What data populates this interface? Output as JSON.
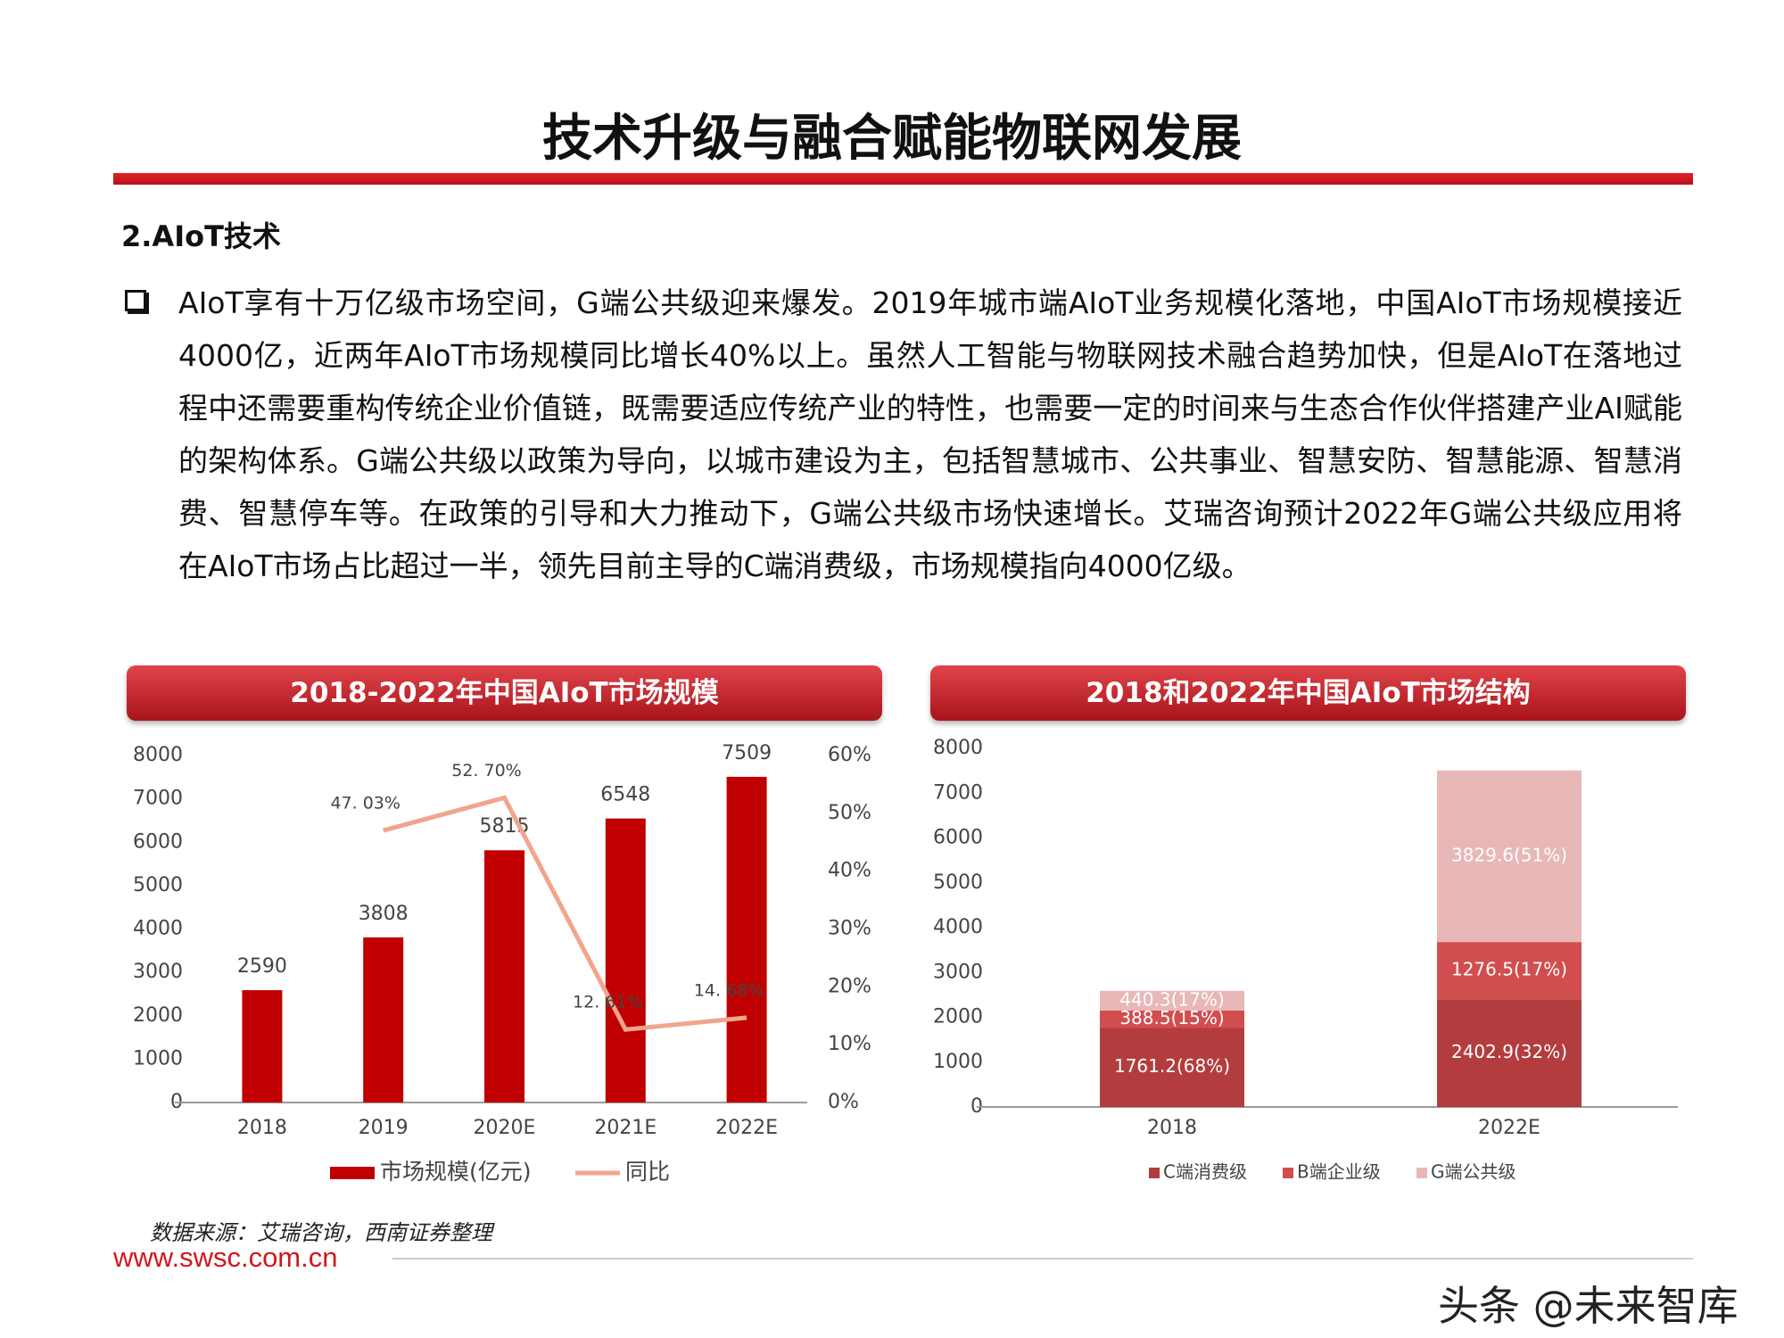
{
  "header": {
    "title": "技术升级与融合赋能物联网发展"
  },
  "section": "2.AIoT技术",
  "paragraph": "AIoT享有十万亿级市场空间，G端公共级迎来爆发。2019年城市端AIoT业务规模化落地，中国AIoT市场规模接近4000亿，近两年AIoT市场规模同比增长40%以上。虽然人工智能与物联网技术融合趋势加快，但是AIoT在落地过程中还需要重构传统企业价值链，既需要适应传统产业的特性，也需要一定的时间来与生态合作伙伴搭建产业AI赋能的架构体系。G端公共级以政策为导向，以城市建设为主，包括智慧城市、公共事业、智慧安防、智慧能源、智慧消费、智慧停车等。在政策的引导和大力推动下，G端公共级市场快速增长。艾瑞咨询预计2022年G端公共级应用将在AIoT市场占比超过一半，领先目前主导的C端消费级，市场规模指向4000亿级。",
  "chart_data": [
    {
      "type": "combo",
      "title": "2018-2022年中国AIoT市场规模",
      "categories": [
        "2018",
        "2019",
        "2020E",
        "2021E",
        "2022E"
      ],
      "series": [
        {
          "name": "市场规模(亿元)",
          "color": "#c00000",
          "type": "bar",
          "values": [
            2590,
            3808,
            5815,
            6548,
            7509
          ]
        },
        {
          "name": "同比",
          "color": "#f0a58c",
          "type": "line",
          "axis": "y2",
          "values": [
            null,
            47.03,
            52.7,
            12.61,
            14.68
          ],
          "value_labels": [
            null,
            "47. 03%",
            "52. 70%",
            "12. 61%",
            "14. 68%"
          ]
        }
      ],
      "ylim": [
        0,
        8000
      ],
      "yticks": [
        0,
        1000,
        2000,
        3000,
        4000,
        5000,
        6000,
        7000,
        8000
      ],
      "y2lim": [
        0,
        60
      ],
      "y2ticks": [
        {
          "value": 0,
          "label": "0%"
        },
        {
          "value": 10,
          "label": "10%"
        },
        {
          "value": 20,
          "label": "20%"
        },
        {
          "value": 30,
          "label": "30%"
        },
        {
          "value": 40,
          "label": "40%"
        },
        {
          "value": 50,
          "label": "50%"
        },
        {
          "value": 60,
          "label": "60%"
        }
      ]
    },
    {
      "type": "stacked",
      "title": "2018和2022年中国AIoT市场结构",
      "categories": [
        "2018",
        "2022E"
      ],
      "series": [
        {
          "name": "C端消费级",
          "color": "#b33d3e",
          "values": [
            1761.2,
            2402.9
          ],
          "value_labels": [
            "1761.2(68%)",
            "2402.9(32%)"
          ]
        },
        {
          "name": "B端企业级",
          "color": "#d24e4e",
          "values": [
            388.5,
            1276.5
          ],
          "value_labels": [
            "388.5(15%)",
            "1276.5(17%)"
          ]
        },
        {
          "name": "G端公共级",
          "color": "#e8b7b8",
          "values": [
            440.3,
            3829.6
          ],
          "value_labels": [
            "440.3(17%)",
            "3829.6(51%)"
          ]
        }
      ],
      "ylim": [
        0,
        8000
      ],
      "yticks": [
        0,
        1000,
        2000,
        3000,
        4000,
        5000,
        6000,
        7000,
        8000
      ]
    }
  ],
  "source": "数据来源：艾瑞咨询，西南证券整理",
  "website": "www.swsc.com.cn",
  "watermark": "头条 @未来智库"
}
